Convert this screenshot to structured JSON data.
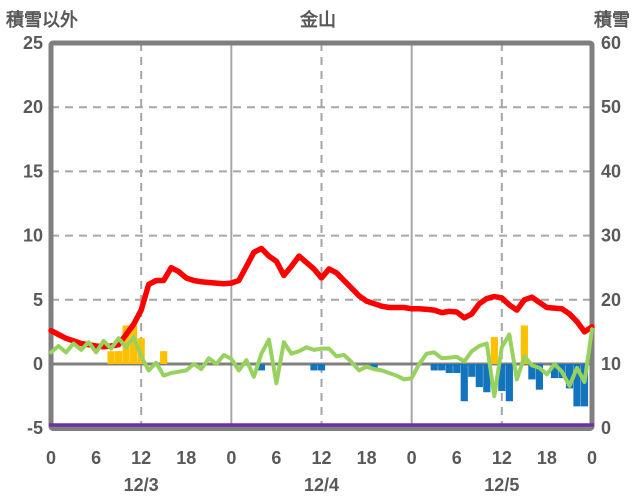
{
  "header": {
    "left_axis_title": "積雪以外",
    "chart_title": "金山",
    "right_axis_title": "積雪"
  },
  "chart_data": {
    "type": "line+bar combo",
    "title": "金山",
    "left_axis": {
      "title": "積雪以外",
      "min": -5,
      "max": 25,
      "tick_step": 5,
      "ticks": [
        25,
        20,
        15,
        10,
        5,
        0,
        -5
      ]
    },
    "right_axis": {
      "title": "積雪",
      "min": 0,
      "max": 60,
      "tick_step": 10,
      "ticks": [
        60,
        50,
        40,
        30,
        20,
        10,
        0
      ]
    },
    "x_axis": {
      "unit": "hour",
      "total_hours": 72,
      "hour_label_step": 6,
      "hour_labels": [
        "0",
        "6",
        "12",
        "18",
        "0",
        "6",
        "12",
        "18",
        "0",
        "6",
        "12",
        "18",
        "0"
      ],
      "date_labels": [
        "12/3",
        "12/4",
        "12/5"
      ],
      "dashed_vertical_gridline_hours": [
        12,
        36,
        60
      ],
      "solid_vertical_gridline_hours": [
        24,
        48
      ]
    },
    "grid": {
      "horizontal_dashed_values": [
        20,
        15,
        10,
        5
      ],
      "zero_line_value": 0,
      "gridline_color": "#a6a6a6",
      "zero_line_color": "#808080",
      "border_color": "#7f7f7f",
      "text_color": "#595959"
    },
    "series": {
      "temperature_red_line": {
        "type": "line",
        "axis": "left",
        "color": "#ff0000",
        "width": 5.5,
        "values": [
          2.6,
          2.3,
          2.0,
          1.8,
          1.6,
          1.5,
          1.4,
          1.35,
          1.4,
          1.5,
          2.3,
          3.1,
          4.2,
          6.2,
          6.5,
          6.5,
          7.5,
          7.2,
          6.7,
          6.5,
          6.4,
          6.35,
          6.3,
          6.25,
          6.3,
          6.5,
          7.6,
          8.7,
          9.0,
          8.4,
          8.0,
          6.9,
          7.6,
          8.4,
          7.9,
          7.4,
          6.7,
          7.4,
          7.1,
          6.5,
          5.9,
          5.3,
          4.9,
          4.7,
          4.5,
          4.4,
          4.4,
          4.4,
          4.3,
          4.3,
          4.25,
          4.2,
          4.0,
          4.1,
          4.05,
          3.6,
          3.9,
          4.7,
          5.1,
          5.25,
          5.15,
          4.6,
          4.2,
          5.0,
          5.2,
          4.8,
          4.4,
          4.35,
          4.3,
          3.9,
          3.3,
          2.5,
          2.9
        ]
      },
      "green_line": {
        "type": "line",
        "axis": "left",
        "color": "#97d25e",
        "width": 4,
        "values": [
          0.9,
          1.4,
          0.9,
          1.6,
          1.1,
          1.7,
          0.9,
          1.8,
          1.2,
          2.0,
          1.3,
          2.1,
          0.6,
          -0.5,
          0.1,
          -0.9,
          -0.7,
          -0.6,
          -0.5,
          0.0,
          -0.4,
          0.45,
          0.0,
          0.7,
          0.4,
          -0.5,
          0.3,
          -1.0,
          0.8,
          1.9,
          -1.5,
          1.7,
          0.8,
          1.0,
          1.3,
          1.1,
          1.2,
          1.2,
          0.6,
          0.7,
          0.15,
          -0.5,
          -0.2,
          -0.4,
          -0.5,
          -0.7,
          -0.9,
          -1.2,
          -1.1,
          0.0,
          0.8,
          0.9,
          0.45,
          0.5,
          0.55,
          0.2,
          1.0,
          1.4,
          1.6,
          -2.5,
          1.3,
          2.3,
          -1.2,
          0.6,
          -0.1,
          -0.3,
          -0.8,
          0.0,
          -0.6,
          -1.7,
          -0.3,
          -1.4,
          2.7
        ]
      },
      "yellow_bars": {
        "type": "bar",
        "axis": "left",
        "color": "#ffc000",
        "bars": [
          {
            "hour": 8,
            "value": 1.0
          },
          {
            "hour": 9,
            "value": 1.0
          },
          {
            "hour": 10,
            "value": 3.0
          },
          {
            "hour": 11,
            "value": 3.0
          },
          {
            "hour": 12,
            "value": 2.0
          },
          {
            "hour": 15,
            "value": 1.0
          },
          {
            "hour": 59,
            "value": 2.1
          },
          {
            "hour": 63,
            "value": 3.0
          }
        ]
      },
      "blue_bars": {
        "type": "bar",
        "axis": "left",
        "color": "#1274bd",
        "bars": [
          {
            "hour": 28,
            "value": -0.5
          },
          {
            "hour": 35,
            "value": -0.5
          },
          {
            "hour": 36,
            "value": -0.5
          },
          {
            "hour": 43,
            "value": -0.4
          },
          {
            "hour": 51,
            "value": -0.5
          },
          {
            "hour": 52,
            "value": -0.5
          },
          {
            "hour": 53,
            "value": -0.7
          },
          {
            "hour": 54,
            "value": -0.7
          },
          {
            "hour": 55,
            "value": -2.9
          },
          {
            "hour": 56,
            "value": -1.0
          },
          {
            "hour": 57,
            "value": -1.8
          },
          {
            "hour": 58,
            "value": -2.2
          },
          {
            "hour": 60,
            "value": -2.1
          },
          {
            "hour": 61,
            "value": -2.9
          },
          {
            "hour": 64,
            "value": -1.2
          },
          {
            "hour": 65,
            "value": -2.0
          },
          {
            "hour": 67,
            "value": -1.1
          },
          {
            "hour": 68,
            "value": -1.1
          },
          {
            "hour": 69,
            "value": -1.9
          },
          {
            "hour": 70,
            "value": -3.3
          },
          {
            "hour": 71,
            "value": -3.3
          }
        ]
      },
      "snow_depth_purple_line": {
        "type": "line",
        "axis": "right",
        "color": "#7030a0",
        "width": 3.5,
        "constant_value": 0
      }
    }
  }
}
